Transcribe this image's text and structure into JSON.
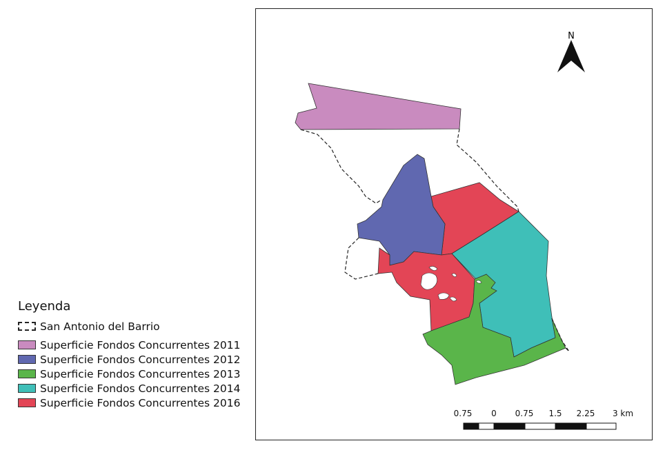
{
  "legend": {
    "title": "Leyenda",
    "boundary": {
      "label": "San Antonio del Barrio"
    },
    "items": [
      {
        "label": "Superficie Fondos Concurrentes 2011",
        "color": "#c98bbf"
      },
      {
        "label": "Superficie Fondos Concurrentes 2012",
        "color": "#6068b0"
      },
      {
        "label": "Superficie Fondos Concurrentes 2013",
        "color": "#5ab54a"
      },
      {
        "label": "Superficie Fondos Concurrentes 2014",
        "color": "#3fbfb8"
      },
      {
        "label": "Superficie Fondos Concurrentes 2016",
        "color": "#e34556"
      }
    ]
  },
  "north_arrow": {
    "label": "N"
  },
  "scale_bar": {
    "labels": [
      "0.75",
      "0",
      "0.75",
      "1.5",
      "2.25",
      "3 km"
    ]
  }
}
